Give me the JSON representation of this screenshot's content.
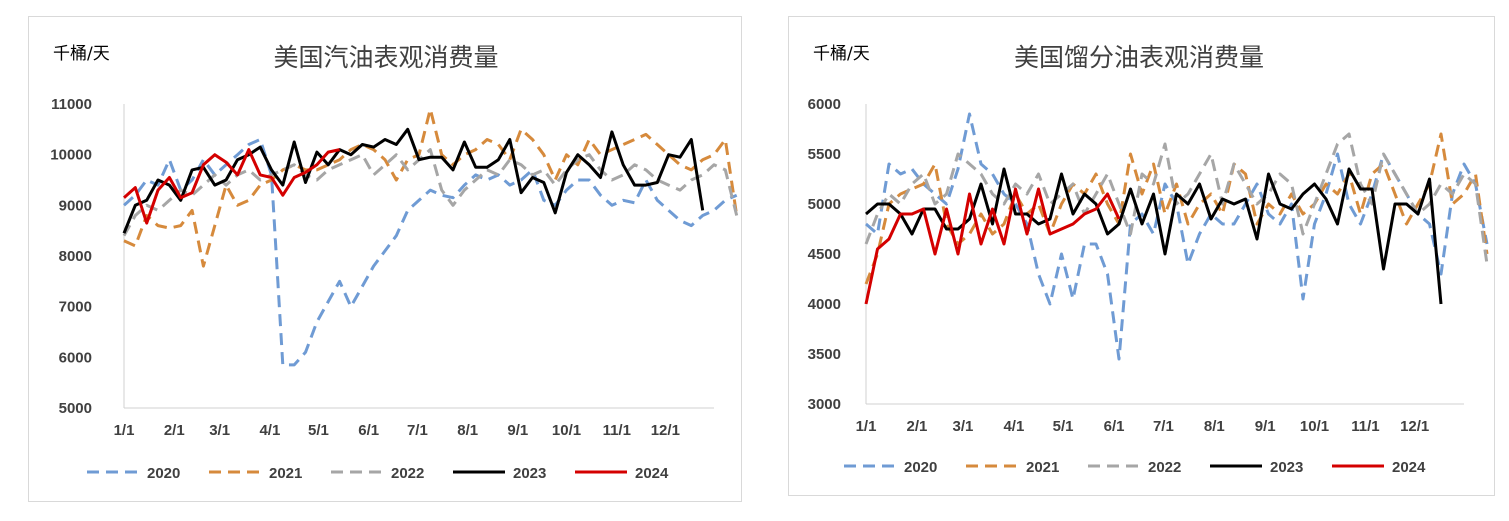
{
  "chart_data": [
    {
      "type": "line",
      "title": "美国汽油表观消费量",
      "unit_label": "千桶/天",
      "ylim": [
        5000,
        11000
      ],
      "y_ticks": [
        5000,
        6000,
        7000,
        8000,
        9000,
        10000,
        11000
      ],
      "x_ticks": [
        "1/1",
        "2/1",
        "3/1",
        "4/1",
        "5/1",
        "6/1",
        "7/1",
        "8/1",
        "9/1",
        "10/1",
        "11/1",
        "12/1"
      ],
      "legend_position": "bottom",
      "series": [
        {
          "name": "2020",
          "color": "#6f9bd4",
          "dash": "dashed",
          "values": [
            9000,
            9200,
            9500,
            9400,
            9900,
            9300,
            9500,
            9900,
            9600,
            9800,
            10000,
            10200,
            10300,
            9600,
            5850,
            5850,
            6100,
            6700,
            7100,
            7500,
            7000,
            7400,
            7800,
            8100,
            8400,
            8900,
            9100,
            9300,
            9200,
            9150,
            9400,
            9600,
            9500,
            9600,
            9400,
            9500,
            9700,
            9100,
            9000,
            9300,
            9500,
            9500,
            9200,
            9000,
            9100,
            9050,
            9500,
            9100,
            8900,
            8700,
            8600,
            8800,
            8900,
            9100,
            9200
          ]
        },
        {
          "name": "2021",
          "color": "#d68a3c",
          "dash": "dashed",
          "values": [
            8300,
            8200,
            8800,
            8600,
            8550,
            8600,
            8900,
            7800,
            8600,
            9400,
            9000,
            9100,
            9400,
            9500,
            9700,
            9800,
            9700,
            9700,
            9800,
            9900,
            10100,
            10200,
            10100,
            9900,
            9500,
            9900,
            10000,
            10900,
            10000,
            9800,
            10000,
            10100,
            10300,
            10200,
            9900,
            10500,
            10300,
            10000,
            9500,
            10000,
            9800,
            10300,
            10000,
            10100,
            10200,
            10300,
            10400,
            10200,
            10000,
            9800,
            9700,
            9900,
            10000,
            10300,
            8800
          ]
        },
        {
          "name": "2022",
          "color": "#a6a6a6",
          "dash": "dashed",
          "values": [
            8400,
            8800,
            9000,
            8900,
            9100,
            9300,
            9200,
            9400,
            9600,
            9400,
            9600,
            9700,
            9500,
            9600,
            9700,
            9800,
            9600,
            9500,
            9700,
            9800,
            9900,
            10000,
            9600,
            9800,
            10000,
            9700,
            9900,
            10100,
            9300,
            9000,
            9300,
            9500,
            9700,
            9600,
            9900,
            9800,
            9600,
            9700,
            9400,
            9700,
            9900,
            10000,
            9700,
            9500,
            9600,
            9800,
            9700,
            9500,
            9400,
            9300,
            9500,
            9600,
            9800,
            9700,
            8800
          ]
        },
        {
          "name": "2023",
          "color": "#000000",
          "dash": "solid",
          "values": [
            8450,
            9000,
            9100,
            9500,
            9400,
            9100,
            9700,
            9750,
            9400,
            9500,
            9900,
            10000,
            10150,
            9700,
            9400,
            10250,
            9450,
            10050,
            9800,
            10100,
            10000,
            10200,
            10150,
            10300,
            10200,
            10500,
            9900,
            9950,
            9950,
            9700,
            10250,
            9750,
            9750,
            9900,
            10300,
            9250,
            9550,
            9450,
            8850,
            9650,
            10000,
            9800,
            9550,
            10450,
            9800,
            9400,
            9400,
            9450,
            10000,
            9950,
            10300,
            8900
          ]
        },
        {
          "name": "2024",
          "color": "#d40000",
          "dash": "solid",
          "values": [
            9150,
            9350,
            8650,
            9300,
            9550,
            9150,
            9250,
            9800,
            10000,
            9850,
            9600,
            10100,
            9600,
            9550,
            9200,
            9550,
            9650,
            9800,
            10050,
            10100
          ]
        }
      ]
    },
    {
      "type": "line",
      "title": "美国馏分油表观消费量",
      "unit_label": "千桶/天",
      "ylim": [
        3000,
        6000
      ],
      "y_ticks": [
        3000,
        3500,
        4000,
        4500,
        5000,
        5500,
        6000
      ],
      "x_ticks": [
        "1/1",
        "2/1",
        "3/1",
        "4/1",
        "5/1",
        "6/1",
        "7/1",
        "8/1",
        "9/1",
        "10/1",
        "11/1",
        "12/1"
      ],
      "legend_position": "bottom",
      "series": [
        {
          "name": "2020",
          "color": "#6f9bd4",
          "dash": "dashed",
          "values": [
            4800,
            4700,
            5400,
            5300,
            5350,
            5200,
            5100,
            5000,
            5350,
            5900,
            5400,
            5300,
            5100,
            5000,
            4800,
            4300,
            4000,
            4500,
            4050,
            4600,
            4600,
            4300,
            3450,
            4800,
            4900,
            4700,
            5200,
            5000,
            4400,
            4700,
            4900,
            4800,
            4800,
            5000,
            5200,
            4900,
            4800,
            5000,
            4050,
            4800,
            5100,
            5500,
            5000,
            4800,
            5100,
            5500,
            5300,
            5100,
            4900,
            4800,
            4300,
            5100,
            5400,
            5200,
            4600
          ]
        },
        {
          "name": "2021",
          "color": "#d68a3c",
          "dash": "dashed",
          "values": [
            4200,
            4500,
            5000,
            5100,
            5150,
            5200,
            5400,
            4800,
            4600,
            4700,
            4900,
            4700,
            4800,
            5100,
            4900,
            5000,
            4700,
            5000,
            5200,
            5100,
            5300,
            5000,
            4800,
            5500,
            5100,
            5400,
            4900,
            5200,
            4800,
            5000,
            5100,
            4900,
            5400,
            5300,
            4800,
            5000,
            4900,
            5100,
            4900,
            5000,
            5200,
            5100,
            5300,
            4900,
            5300,
            5400,
            5100,
            4800,
            5000,
            5200,
            5700,
            5000,
            5100,
            5300,
            4500
          ]
        },
        {
          "name": "2022",
          "color": "#a6a6a6",
          "dash": "dashed",
          "values": [
            4600,
            4900,
            5100,
            5000,
            5200,
            5300,
            5000,
            5100,
            5500,
            5400,
            5300,
            5100,
            5000,
            5200,
            5100,
            5300,
            5000,
            5100,
            5200,
            4900,
            5100,
            5300,
            5000,
            4700,
            5300,
            5200,
            5600,
            5000,
            5100,
            5300,
            5500,
            5000,
            5400,
            5200,
            5000,
            5100,
            5300,
            5200,
            4700,
            5000,
            5300,
            5600,
            5700,
            5200,
            5000,
            5500,
            5300,
            5100,
            4900,
            5000,
            5200,
            5100,
            5300,
            5200,
            4400
          ]
        },
        {
          "name": "2023",
          "color": "#000000",
          "dash": "solid",
          "values": [
            4900,
            5000,
            5000,
            4900,
            4700,
            4950,
            4950,
            4750,
            4750,
            4850,
            5200,
            4800,
            5350,
            4900,
            4900,
            4800,
            4850,
            5300,
            4900,
            5100,
            5000,
            4700,
            4800,
            5150,
            4800,
            5100,
            4500,
            5100,
            5000,
            5200,
            4850,
            5050,
            5000,
            5050,
            4650,
            5300,
            5000,
            4950,
            5100,
            5200,
            5050,
            4800,
            5350,
            5150,
            5150,
            4350,
            5000,
            5000,
            4900,
            5250,
            4000
          ]
        },
        {
          "name": "2024",
          "color": "#d40000",
          "dash": "solid",
          "values": [
            4000,
            4550,
            4650,
            4900,
            4900,
            4950,
            4500,
            4950,
            4500,
            5100,
            4600,
            4950,
            4600,
            5150,
            4700,
            5150,
            4700,
            4750,
            4800,
            4900,
            4950,
            5100,
            4850
          ]
        }
      ]
    }
  ]
}
